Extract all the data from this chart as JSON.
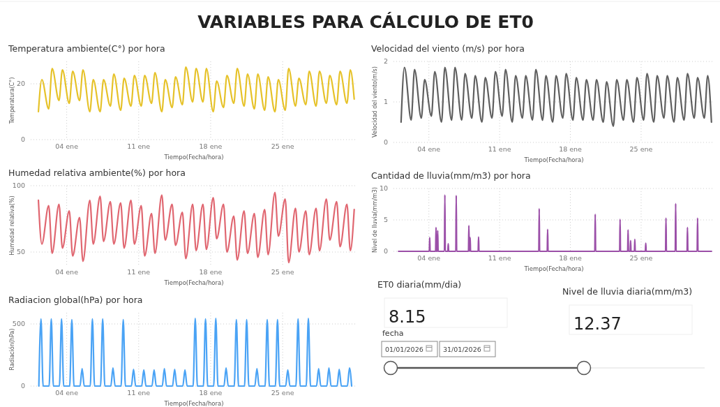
{
  "chart_data": [
    {
      "type": "other",
      "title": "VARIABLES PARA CÁLCULO DE ET0"
    },
    {
      "type": "line",
      "title": "Temperatura ambiente(C°) por hora",
      "xlabel": "Tiempo(Fecha/hora)",
      "ylabel": "Temperatura(C°)",
      "grid": true,
      "x": [
        "2026-01-01T06:00",
        "2026-01-01T14:00",
        "2026-01-02T06:00",
        "2026-01-02T14:00",
        "2026-01-03T06:00",
        "2026-01-03T14:00",
        "2026-01-04T06:00",
        "2026-01-04T14:00",
        "2026-01-05T06:00",
        "2026-01-05T14:00",
        "2026-01-06T06:00",
        "2026-01-06T14:00",
        "2026-01-07T06:00",
        "2026-01-07T14:00",
        "2026-01-08T06:00",
        "2026-01-08T14:00",
        "2026-01-09T06:00",
        "2026-01-09T14:00",
        "2026-01-10T06:00",
        "2026-01-10T14:00",
        "2026-01-11T06:00",
        "2026-01-11T14:00",
        "2026-01-12T06:00",
        "2026-01-12T14:00",
        "2026-01-13T06:00",
        "2026-01-13T14:00",
        "2026-01-14T06:00",
        "2026-01-14T14:00",
        "2026-01-15T06:00",
        "2026-01-15T14:00",
        "2026-01-16T06:00",
        "2026-01-16T14:00",
        "2026-01-17T06:00",
        "2026-01-17T14:00",
        "2026-01-18T06:00",
        "2026-01-18T14:00",
        "2026-01-19T06:00",
        "2026-01-19T14:00",
        "2026-01-20T06:00",
        "2026-01-20T14:00",
        "2026-01-21T06:00",
        "2026-01-21T14:00",
        "2026-01-22T06:00",
        "2026-01-22T14:00",
        "2026-01-23T06:00",
        "2026-01-23T14:00",
        "2026-01-24T06:00",
        "2026-01-24T14:00",
        "2026-01-25T06:00",
        "2026-01-25T14:00",
        "2026-01-26T06:00",
        "2026-01-26T14:00",
        "2026-01-27T06:00",
        "2026-01-27T14:00",
        "2026-01-28T06:00",
        "2026-01-28T14:00",
        "2026-01-29T06:00",
        "2026-01-29T14:00",
        "2026-01-30T06:00",
        "2026-01-30T14:00",
        "2026-01-31T06:00",
        "2026-01-31T14:00",
        "2026-01-31T23:00"
      ],
      "series": [
        {
          "color": "#e6c229",
          "values": [
            10,
            21.5,
            11,
            25.5,
            14,
            25,
            13,
            24.5,
            14,
            25,
            10,
            21.5,
            10,
            21.5,
            12,
            23.5,
            10.5,
            22,
            12,
            23,
            12,
            23,
            13,
            24,
            10,
            21.5,
            11.5,
            22.5,
            12.5,
            26,
            13.5,
            25.5,
            13.5,
            25.5,
            10,
            21,
            11.5,
            23,
            13,
            25.5,
            12,
            23.5,
            11,
            23.5,
            10.5,
            22.5,
            10,
            21.5,
            10.5,
            25.5,
            12,
            22,
            12.5,
            24.5,
            12,
            24.5,
            13,
            23,
            12.5,
            24.5,
            13,
            25,
            14.5
          ]
        }
      ],
      "xlim": [
        "2025-12-31T12:00",
        "2026-02-01T06:00"
      ],
      "xticks": [
        {
          "value": "2026-01-04",
          "label": "04 ene"
        },
        {
          "value": "2026-01-11",
          "label": "11 ene"
        },
        {
          "value": "2026-01-18",
          "label": "18 ene"
        },
        {
          "value": "2026-01-25",
          "label": "25 ene"
        }
      ],
      "ylim": [
        0,
        28
      ],
      "yticks": [
        0,
        20
      ]
    },
    {
      "type": "line",
      "title": "Velocidad del viento (m/s) por hora",
      "xlabel": "Tiempo(Fecha/hora)",
      "ylabel": "Velocidad del viento(m/s)",
      "grid": true,
      "x": [
        "2026-01-01T06:00",
        "2026-01-01T14:00",
        "2026-01-02T06:00",
        "2026-01-02T14:00",
        "2026-01-03T06:00",
        "2026-01-03T14:00",
        "2026-01-04T06:00",
        "2026-01-04T14:00",
        "2026-01-05T06:00",
        "2026-01-05T14:00",
        "2026-01-06T06:00",
        "2026-01-06T14:00",
        "2026-01-07T06:00",
        "2026-01-07T14:00",
        "2026-01-08T06:00",
        "2026-01-08T14:00",
        "2026-01-09T06:00",
        "2026-01-09T14:00",
        "2026-01-10T06:00",
        "2026-01-10T14:00",
        "2026-01-11T06:00",
        "2026-01-11T14:00",
        "2026-01-12T06:00",
        "2026-01-12T14:00",
        "2026-01-13T06:00",
        "2026-01-13T14:00",
        "2026-01-14T06:00",
        "2026-01-14T14:00",
        "2026-01-15T06:00",
        "2026-01-15T14:00",
        "2026-01-16T06:00",
        "2026-01-16T14:00",
        "2026-01-17T06:00",
        "2026-01-17T14:00",
        "2026-01-18T06:00",
        "2026-01-18T14:00",
        "2026-01-19T06:00",
        "2026-01-19T14:00",
        "2026-01-20T06:00",
        "2026-01-20T14:00",
        "2026-01-21T06:00",
        "2026-01-21T14:00",
        "2026-01-22T06:00",
        "2026-01-22T14:00",
        "2026-01-23T06:00",
        "2026-01-23T14:00",
        "2026-01-24T06:00",
        "2026-01-24T14:00",
        "2026-01-25T06:00",
        "2026-01-25T14:00",
        "2026-01-26T06:00",
        "2026-01-26T14:00",
        "2026-01-27T06:00",
        "2026-01-27T14:00",
        "2026-01-28T06:00",
        "2026-01-28T14:00",
        "2026-01-29T06:00",
        "2026-01-29T14:00",
        "2026-01-30T06:00",
        "2026-01-30T14:00",
        "2026-01-31T06:00",
        "2026-01-31T14:00",
        "2026-01-31T23:00"
      ],
      "series": [
        {
          "color": "#5f5f5f",
          "values": [
            0.5,
            1.85,
            0.55,
            1.8,
            0.6,
            1.55,
            0.65,
            1.75,
            0.5,
            1.85,
            0.55,
            1.85,
            0.55,
            1.7,
            0.6,
            1.65,
            0.5,
            1.6,
            0.6,
            1.75,
            0.65,
            1.8,
            0.5,
            1.65,
            0.6,
            1.65,
            0.55,
            1.8,
            0.55,
            1.65,
            0.5,
            1.65,
            0.6,
            1.7,
            0.55,
            1.6,
            0.55,
            1.55,
            0.55,
            1.55,
            0.5,
            1.5,
            0.4,
            1.55,
            0.55,
            1.55,
            0.5,
            1.6,
            0.55,
            1.7,
            0.5,
            1.65,
            0.6,
            1.65,
            0.5,
            1.6,
            0.55,
            1.7,
            0.6,
            1.6,
            0.6,
            1.65,
            0.5
          ]
        }
      ],
      "xlim": [
        "2025-12-31T12:00",
        "2026-02-01T06:00"
      ],
      "xticks": [
        {
          "value": "2026-01-04",
          "label": "04 ene"
        },
        {
          "value": "2026-01-11",
          "label": "11 ene"
        },
        {
          "value": "2026-01-18",
          "label": "18 ene"
        },
        {
          "value": "2026-01-25",
          "label": "25 ene"
        }
      ],
      "ylim": [
        0,
        2
      ],
      "yticks": [
        0,
        1,
        2
      ]
    },
    {
      "type": "line",
      "title": "Humedad relativa ambiente(%) por hora",
      "xlabel": "Tiempo(Fecha/hora)",
      "ylabel": "Humedad relativa(%)",
      "grid": true,
      "x": [
        "2026-01-01T06:00",
        "2026-01-01T14:00",
        "2026-01-02T06:00",
        "2026-01-02T14:00",
        "2026-01-03T06:00",
        "2026-01-03T14:00",
        "2026-01-04T06:00",
        "2026-01-04T14:00",
        "2026-01-05T06:00",
        "2026-01-05T14:00",
        "2026-01-06T06:00",
        "2026-01-06T14:00",
        "2026-01-07T06:00",
        "2026-01-07T14:00",
        "2026-01-08T06:00",
        "2026-01-08T14:00",
        "2026-01-09T06:00",
        "2026-01-09T14:00",
        "2026-01-10T06:00",
        "2026-01-10T14:00",
        "2026-01-11T06:00",
        "2026-01-11T14:00",
        "2026-01-12T06:00",
        "2026-01-12T14:00",
        "2026-01-13T06:00",
        "2026-01-13T14:00",
        "2026-01-14T06:00",
        "2026-01-14T14:00",
        "2026-01-15T06:00",
        "2026-01-15T14:00",
        "2026-01-16T06:00",
        "2026-01-16T14:00",
        "2026-01-17T06:00",
        "2026-01-17T14:00",
        "2026-01-18T06:00",
        "2026-01-18T14:00",
        "2026-01-19T06:00",
        "2026-01-19T14:00",
        "2026-01-20T06:00",
        "2026-01-20T14:00",
        "2026-01-21T06:00",
        "2026-01-21T14:00",
        "2026-01-22T06:00",
        "2026-01-22T14:00",
        "2026-01-23T06:00",
        "2026-01-23T14:00",
        "2026-01-24T06:00",
        "2026-01-24T14:00",
        "2026-01-25T06:00",
        "2026-01-25T14:00",
        "2026-01-26T06:00",
        "2026-01-26T14:00",
        "2026-01-27T06:00",
        "2026-01-27T14:00",
        "2026-01-28T06:00",
        "2026-01-28T14:00",
        "2026-01-29T06:00",
        "2026-01-29T14:00",
        "2026-01-30T06:00",
        "2026-01-30T14:00",
        "2026-01-31T06:00",
        "2026-01-31T14:00",
        "2026-01-31T23:00"
      ],
      "series": [
        {
          "color": "#e06670",
          "values": [
            89,
            56,
            85,
            49,
            86,
            53,
            81,
            47,
            76,
            43,
            89,
            56,
            92,
            58,
            88,
            56,
            87,
            53,
            89,
            56,
            85,
            47,
            79,
            49,
            93,
            59,
            86,
            55,
            80,
            45,
            86,
            51,
            86,
            52,
            91,
            60,
            86,
            50,
            77,
            44,
            81,
            49,
            79,
            46,
            82,
            48,
            95,
            62,
            90,
            42,
            83,
            50,
            81,
            48,
            83,
            51,
            90,
            59,
            88,
            54,
            86,
            51,
            82
          ]
        }
      ],
      "xlim": [
        "2025-12-31T12:00",
        "2026-02-01T06:00"
      ],
      "xticks": [
        {
          "value": "2026-01-04",
          "label": "04 ene"
        },
        {
          "value": "2026-01-11",
          "label": "11 ene"
        },
        {
          "value": "2026-01-18",
          "label": "18 ene"
        },
        {
          "value": "2026-01-25",
          "label": "25 ene"
        }
      ],
      "ylim": [
        40,
        100
      ],
      "yticks": [
        50,
        100
      ]
    },
    {
      "type": "line",
      "title": "Cantidad de lluvia(mm/m3) por hora",
      "xlabel": "Tiempo(Fecha/hora)",
      "ylabel": "Nivel de lluvia(mm/m3)",
      "grid": true,
      "x": [
        "2026-01-01T00:00",
        "2026-01-04T01:00",
        "2026-01-04T02:00",
        "2026-01-04T03:00",
        "2026-01-04T16:00",
        "2026-01-04T17:00",
        "2026-01-04T18:00",
        "2026-01-04T20:00",
        "2026-01-04T21:00",
        "2026-01-04T22:00",
        "2026-01-05T13:00",
        "2026-01-05T14:00",
        "2026-01-05T15:00",
        "2026-01-05T21:00",
        "2026-01-05T22:00",
        "2026-01-05T23:00",
        "2026-01-06T16:00",
        "2026-01-06T17:00",
        "2026-01-06T18:00",
        "2026-01-07T22:00",
        "2026-01-07T23:00",
        "2026-01-08T00:00",
        "2026-01-08T01:00",
        "2026-01-08T02:00",
        "2026-01-08T03:00",
        "2026-01-08T21:00",
        "2026-01-08T22:00",
        "2026-01-08T23:00",
        "2026-01-14T21:00",
        "2026-01-14T22:00",
        "2026-01-14T23:00",
        "2026-01-15T17:00",
        "2026-01-15T18:00",
        "2026-01-15T19:00",
        "2026-01-20T10:00",
        "2026-01-20T11:00",
        "2026-01-20T12:00",
        "2026-01-22T21:00",
        "2026-01-22T22:00",
        "2026-01-22T23:00",
        "2026-01-23T16:00",
        "2026-01-23T17:00",
        "2026-01-23T18:00",
        "2026-01-23T22:00",
        "2026-01-23T23:00",
        "2026-01-24T00:00",
        "2026-01-24T08:00",
        "2026-01-24T09:00",
        "2026-01-24T10:00",
        "2026-01-25T10:00",
        "2026-01-25T11:00",
        "2026-01-25T12:00",
        "2026-01-27T10:00",
        "2026-01-27T11:00",
        "2026-01-27T12:00",
        "2026-01-28T09:00",
        "2026-01-28T10:00",
        "2026-01-28T11:00",
        "2026-01-29T13:00",
        "2026-01-29T14:00",
        "2026-01-29T15:00",
        "2026-01-30T13:00",
        "2026-01-30T14:00",
        "2026-01-30T15:00",
        "2026-01-31T23:00"
      ],
      "series": [
        {
          "color": "#9b4fa8",
          "values": [
            0,
            0,
            2.2,
            0,
            0,
            3.8,
            0,
            0,
            3.3,
            0,
            0,
            9,
            0,
            0,
            1.2,
            0,
            0,
            8.9,
            0,
            0,
            4.1,
            0,
            0,
            2.2,
            0,
            0,
            2.3,
            0,
            0,
            6.8,
            0,
            0,
            3.5,
            0,
            0,
            5.9,
            0,
            0,
            5.1,
            0,
            0,
            3.4,
            0,
            0,
            1.7,
            0,
            0,
            1.9,
            0,
            0,
            1.3,
            0,
            0,
            5.3,
            0,
            0,
            7.6,
            0,
            0,
            3.8,
            0,
            0,
            5.3,
            0,
            0
          ]
        }
      ],
      "xlim": [
        "2025-12-31T12:00",
        "2026-02-01T06:00"
      ],
      "xticks": [
        {
          "value": "2026-01-04",
          "label": "04 ene"
        },
        {
          "value": "2026-01-11",
          "label": "11 ene"
        },
        {
          "value": "2026-01-18",
          "label": "18 ene"
        },
        {
          "value": "2026-01-25",
          "label": "25 ene"
        }
      ],
      "ylim": [
        0,
        10
      ],
      "yticks": [
        0,
        5,
        10
      ]
    },
    {
      "type": "line",
      "title": "Radiacion global(hPa) por hora",
      "xlabel": "Tiempo(Fecha/hora)",
      "ylabel": "Radiación(hPa)",
      "grid": true,
      "x": [
        "2026-01-01T07:00",
        "2026-01-01T12:00",
        "2026-01-01T17:00",
        "2026-01-02T07:00",
        "2026-01-02T12:00",
        "2026-01-02T17:00",
        "2026-01-03T07:00",
        "2026-01-03T12:00",
        "2026-01-03T17:00",
        "2026-01-04T07:00",
        "2026-01-04T12:00",
        "2026-01-04T17:00",
        "2026-01-05T07:00",
        "2026-01-05T12:00",
        "2026-01-05T17:00",
        "2026-01-06T07:00",
        "2026-01-06T12:00",
        "2026-01-06T17:00",
        "2026-01-07T07:00",
        "2026-01-07T12:00",
        "2026-01-07T17:00",
        "2026-01-08T07:00",
        "2026-01-08T12:00",
        "2026-01-08T17:00",
        "2026-01-09T07:00",
        "2026-01-09T12:00",
        "2026-01-09T17:00",
        "2026-01-10T07:00",
        "2026-01-10T12:00",
        "2026-01-10T17:00",
        "2026-01-11T07:00",
        "2026-01-11T12:00",
        "2026-01-11T17:00",
        "2026-01-12T07:00",
        "2026-01-12T12:00",
        "2026-01-12T17:00",
        "2026-01-13T07:00",
        "2026-01-13T12:00",
        "2026-01-13T17:00",
        "2026-01-14T07:00",
        "2026-01-14T12:00",
        "2026-01-14T17:00",
        "2026-01-15T07:00",
        "2026-01-15T12:00",
        "2026-01-15T17:00",
        "2026-01-16T07:00",
        "2026-01-16T12:00",
        "2026-01-16T17:00",
        "2026-01-17T07:00",
        "2026-01-17T12:00",
        "2026-01-17T17:00",
        "2026-01-18T07:00",
        "2026-01-18T12:00",
        "2026-01-18T17:00",
        "2026-01-19T07:00",
        "2026-01-19T12:00",
        "2026-01-19T17:00",
        "2026-01-20T07:00",
        "2026-01-20T12:00",
        "2026-01-20T17:00",
        "2026-01-21T07:00",
        "2026-01-21T12:00",
        "2026-01-21T17:00",
        "2026-01-22T07:00",
        "2026-01-22T12:00",
        "2026-01-22T17:00",
        "2026-01-23T07:00",
        "2026-01-23T12:00",
        "2026-01-23T17:00",
        "2026-01-24T07:00",
        "2026-01-24T12:00",
        "2026-01-24T17:00",
        "2026-01-25T07:00",
        "2026-01-25T12:00",
        "2026-01-25T17:00",
        "2026-01-26T07:00",
        "2026-01-26T12:00",
        "2026-01-26T17:00",
        "2026-01-27T07:00",
        "2026-01-27T12:00",
        "2026-01-27T17:00",
        "2026-01-28T07:00",
        "2026-01-28T12:00",
        "2026-01-28T17:00",
        "2026-01-29T07:00",
        "2026-01-29T12:00",
        "2026-01-29T17:00",
        "2026-01-30T07:00",
        "2026-01-30T12:00",
        "2026-01-30T17:00",
        "2026-01-31T07:00",
        "2026-01-31T12:00",
        "2026-01-31T17:00"
      ],
      "series": [
        {
          "color": "#4aa3f5",
          "values": [
            0,
            540,
            0,
            0,
            540,
            0,
            0,
            540,
            0,
            0,
            535,
            0,
            0,
            140,
            0,
            0,
            540,
            0,
            0,
            540,
            0,
            0,
            145,
            0,
            0,
            535,
            0,
            0,
            135,
            0,
            0,
            130,
            0,
            0,
            130,
            0,
            0,
            140,
            0,
            0,
            135,
            0,
            0,
            130,
            0,
            0,
            545,
            0,
            0,
            540,
            0,
            0,
            545,
            0,
            0,
            145,
            0,
            0,
            535,
            0,
            0,
            535,
            0,
            0,
            140,
            0,
            0,
            535,
            0,
            0,
            535,
            0,
            0,
            130,
            0,
            0,
            540,
            0,
            0,
            545,
            0,
            0,
            140,
            0,
            0,
            145,
            0,
            0,
            135,
            0,
            0,
            145,
            0
          ]
        }
      ],
      "xlim": [
        "2025-12-31T12:00",
        "2026-02-01T06:00"
      ],
      "xticks": [
        {
          "value": "2026-01-04",
          "label": "04 ene"
        },
        {
          "value": "2026-01-11",
          "label": "11 ene"
        },
        {
          "value": "2026-01-18",
          "label": "18 ene"
        },
        {
          "value": "2026-01-25",
          "label": "25 ene"
        }
      ],
      "ylim": [
        0,
        590
      ],
      "yticks": [
        0,
        500
      ]
    },
    {
      "type": "other",
      "title": "ET0 diaria(mm/dia)",
      "annotations": [
        "8.15"
      ]
    },
    {
      "type": "other",
      "title": "Nivel de lluvia diaria(mm/m3)",
      "annotations": [
        "12.37"
      ]
    },
    {
      "type": "other",
      "title": "fecha",
      "annotations": [
        "01/01/2026",
        "31/01/2026"
      ]
    }
  ]
}
